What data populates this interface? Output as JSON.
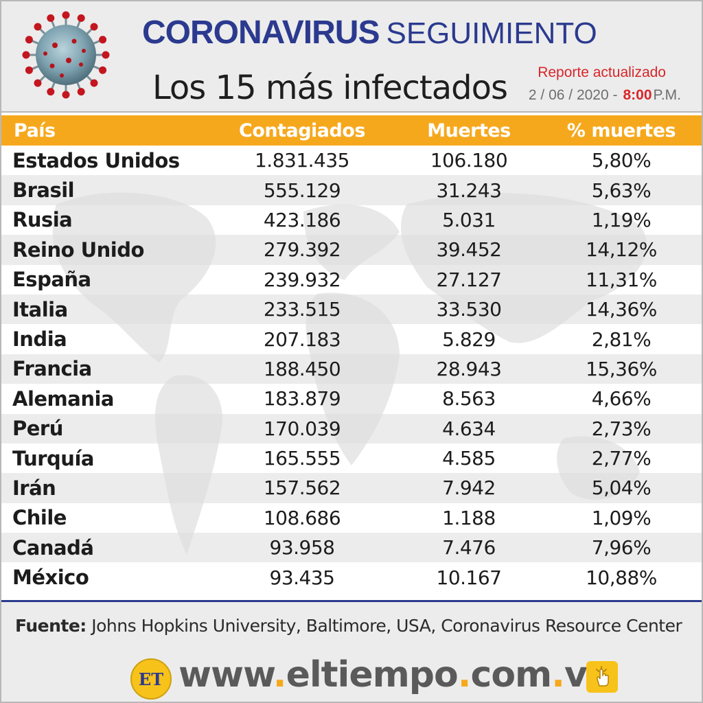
{
  "header": {
    "title_main": "Coronavirus",
    "title_sub": "SEGUIMIENTO",
    "subtitle": "Los 15 más infectados",
    "report_label": "Reporte actualizado",
    "report_date": "2 / 06 / 2020 -",
    "report_time": "8:00",
    "report_ampm": "P.M.",
    "icon": "coronavirus-icon"
  },
  "table": {
    "columns": [
      "País",
      "Contagiados",
      "Muertes",
      "% muertes"
    ],
    "rows": [
      [
        "Estados Unidos",
        "1.831.435",
        "106.180",
        "5,80%"
      ],
      [
        "Brasil",
        "555.129",
        "31.243",
        "5,63%"
      ],
      [
        "Rusia",
        "423.186",
        "5.031",
        "1,19%"
      ],
      [
        "Reino Unido",
        "279.392",
        "39.452",
        "14,12%"
      ],
      [
        "España",
        "239.932",
        "27.127",
        "11,31%"
      ],
      [
        "Italia",
        "233.515",
        "33.530",
        "14,36%"
      ],
      [
        "India",
        "207.183",
        "5.829",
        "2,81%"
      ],
      [
        "Francia",
        "188.450",
        "28.943",
        "15,36%"
      ],
      [
        "Alemania",
        "183.879",
        "8.563",
        "4,66%"
      ],
      [
        "Perú",
        "170.039",
        "4.634",
        "2,73%"
      ],
      [
        "Turquía",
        "165.555",
        "4.585",
        "2,77%"
      ],
      [
        "Irán",
        "157.562",
        "7.942",
        "5,04%"
      ],
      [
        "Chile",
        "108.686",
        "1.188",
        "1,09%"
      ],
      [
        "Canadá",
        "93.958",
        "7.476",
        "7,96%"
      ],
      [
        "México",
        "93.435",
        "10.167",
        "10,88%"
      ]
    ]
  },
  "footer": {
    "source_label": "Fuente:",
    "source_text": "Johns Hopkins University, Baltimore, USA, Coronavirus Resource Center",
    "logo_text": "ET",
    "website": [
      "www",
      ".",
      "eltiempo",
      ".",
      "com",
      ".",
      "ve"
    ],
    "click_icon": "hand-click-icon"
  },
  "colors": {
    "title_blue": "#2b3a8f",
    "header_orange": "#f6a81c",
    "report_red": "#d8262a",
    "logo_yellow": "#f7c21a"
  }
}
